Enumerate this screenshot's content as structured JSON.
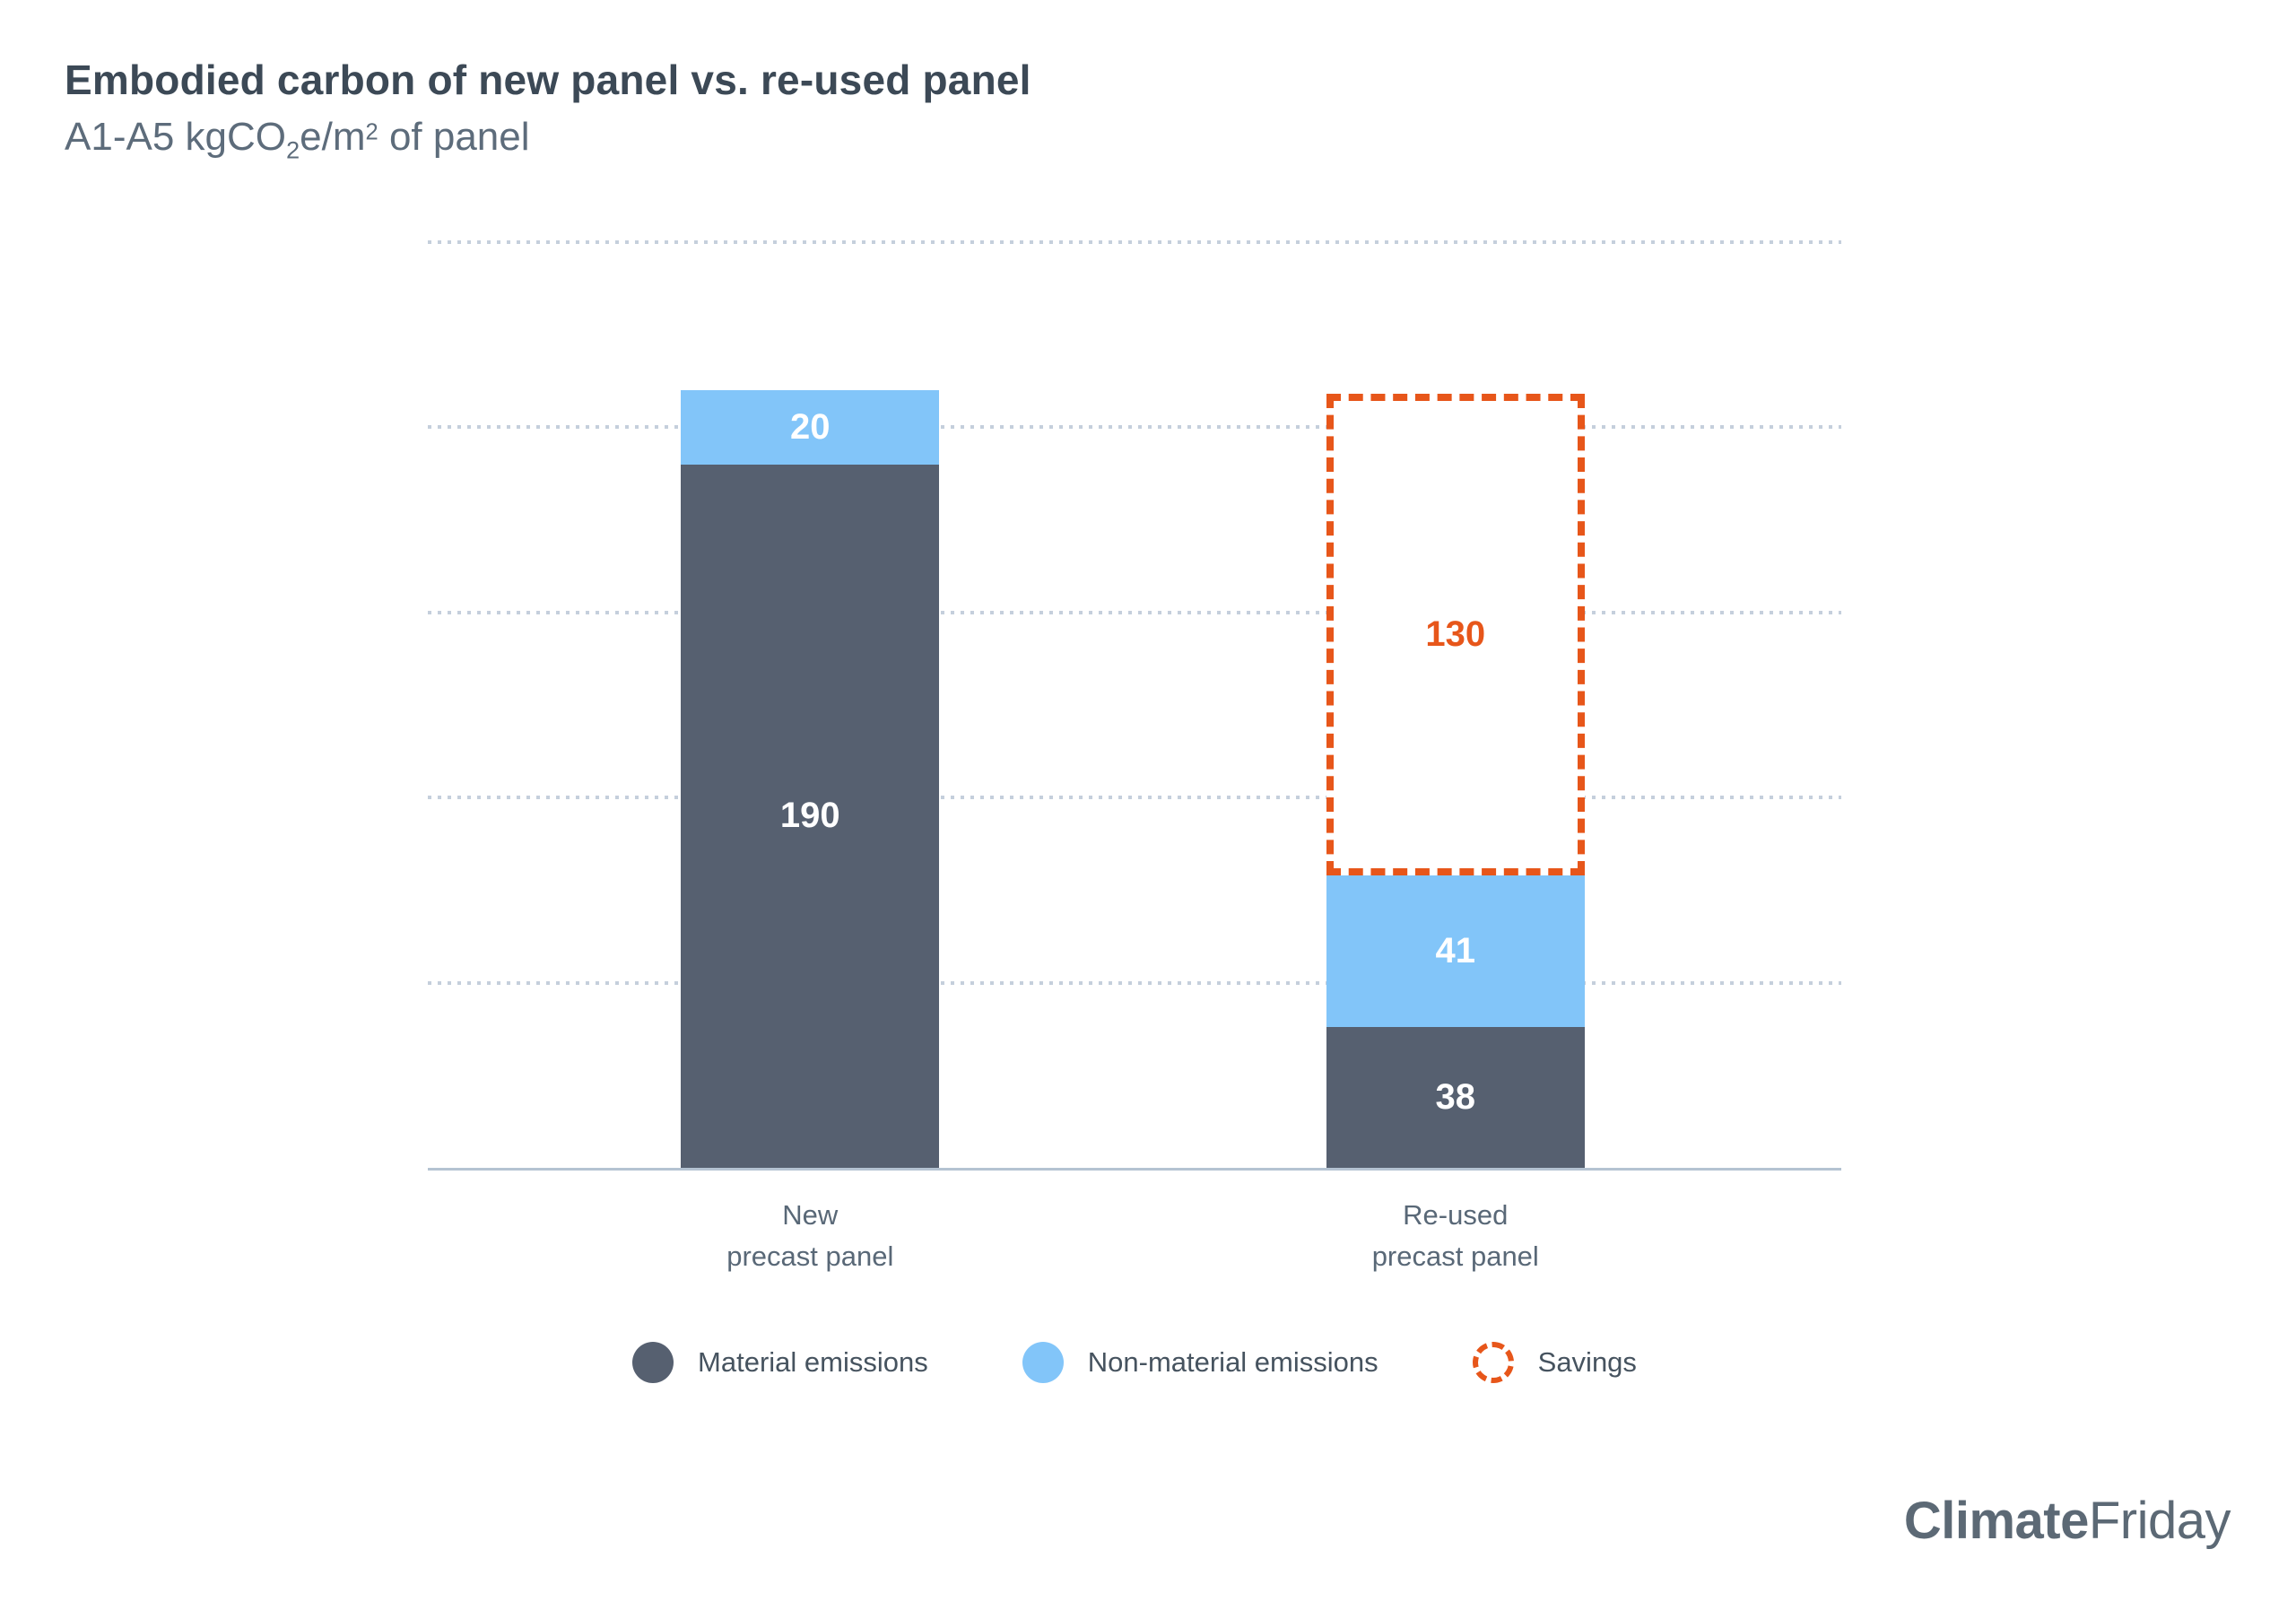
{
  "header": {
    "title": "Embodied carbon of new panel vs. re-used panel",
    "subtitle": {
      "prefix": "A1-A5 kgCO",
      "sub": "2",
      "mid": "e/m",
      "sup": "2",
      "suffix": " of panel"
    }
  },
  "chart_data": {
    "type": "bar",
    "stacked": true,
    "title": "Embodied carbon of new panel vs. re-used panel",
    "subtitle": "A1-A5 kgCO2e/m2 of panel",
    "xlabel": "",
    "ylabel": "",
    "ylim": [
      0,
      250
    ],
    "gridline_step": 50,
    "grid": "horizontal-dotted",
    "y_axis_tick_labels": "none",
    "legend_position": "bottom",
    "categories": [
      "New precast panel",
      "Re-used precast panel"
    ],
    "category_lines": [
      [
        "New",
        "precast panel"
      ],
      [
        "Re-used",
        "precast panel"
      ]
    ],
    "series": [
      {
        "name": "Material emissions",
        "values": [
          190,
          38
        ],
        "color": "#566070",
        "style": "solid",
        "label_color": "#FFFFFF"
      },
      {
        "name": "Non-material emissions",
        "values": [
          20,
          41
        ],
        "color": "#82C5F9",
        "style": "solid",
        "label_color": "#FFFFFF"
      },
      {
        "name": "Savings",
        "values": [
          0,
          130
        ],
        "color": "#E7561A",
        "style": "dashed-outline",
        "label_color": "#E7561A"
      }
    ],
    "bar_totals": [
      210,
      209
    ]
  },
  "legend": {
    "items": [
      "Material emissions",
      "Non-material emissions",
      "Savings"
    ]
  },
  "footer": {
    "brand_bold": "Climate",
    "brand_regular": "Friday"
  },
  "colors": {
    "material": "#566070",
    "non_material": "#82C5F9",
    "savings_orange": "#E7561A",
    "gridline": "#C5CFDC",
    "baseline": "#B4C3D2",
    "title_text": "#3C4956",
    "subtitle_text": "#5D6C7B",
    "axis_text": "#596877",
    "legend_text": "#46535F",
    "logo_text": "#5C6975"
  }
}
